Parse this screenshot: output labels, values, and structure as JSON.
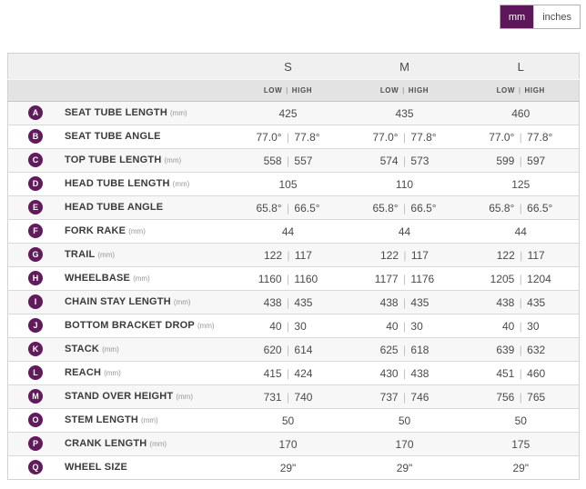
{
  "accent_color": "#5e175a",
  "unit_toggle": {
    "mm_label": "mm",
    "inches_label": "inches",
    "active": "mm"
  },
  "table": {
    "sizes": [
      "S",
      "M",
      "L"
    ],
    "sub_header": "LOW | HIGH",
    "rows": [
      {
        "letter": "A",
        "label": "SEAT TUBE LENGTH",
        "unit": "(mm)",
        "values": [
          "425",
          "435",
          "460"
        ]
      },
      {
        "letter": "B",
        "label": "SEAT TUBE ANGLE",
        "unit": "",
        "values": [
          "77.0° | 77.8°",
          "77.0° | 77.8°",
          "77.0° | 77.8°"
        ]
      },
      {
        "letter": "C",
        "label": "TOP TUBE LENGTH",
        "unit": "(mm)",
        "values": [
          "558 | 557",
          "574 | 573",
          "599 | 597"
        ]
      },
      {
        "letter": "D",
        "label": "HEAD TUBE LENGTH",
        "unit": "(mm)",
        "values": [
          "105",
          "110",
          "125"
        ]
      },
      {
        "letter": "E",
        "label": "HEAD TUBE ANGLE",
        "unit": "",
        "values": [
          "65.8° | 66.5°",
          "65.8° | 66.5°",
          "65.8° | 66.5°"
        ]
      },
      {
        "letter": "F",
        "label": "FORK RAKE",
        "unit": "(mm)",
        "values": [
          "44",
          "44",
          "44"
        ]
      },
      {
        "letter": "G",
        "label": "TRAIL",
        "unit": "(mm)",
        "values": [
          "122 | 117",
          "122 | 117",
          "122 | 117"
        ]
      },
      {
        "letter": "H",
        "label": "WHEELBASE",
        "unit": "(mm)",
        "values": [
          "1160 | 1160",
          "1177 | 1176",
          "1205 | 1204"
        ]
      },
      {
        "letter": "I",
        "label": "CHAIN STAY LENGTH",
        "unit": "(mm)",
        "values": [
          "438 | 435",
          "438 | 435",
          "438 | 435"
        ]
      },
      {
        "letter": "J",
        "label": "BOTTOM BRACKET DROP",
        "unit": "(mm)",
        "values": [
          "40 | 30",
          "40 | 30",
          "40 | 30"
        ]
      },
      {
        "letter": "K",
        "label": "STACK",
        "unit": "(mm)",
        "values": [
          "620 | 614",
          "625 | 618",
          "639 | 632"
        ]
      },
      {
        "letter": "L",
        "label": "REACH",
        "unit": "(mm)",
        "values": [
          "415 | 424",
          "430 | 438",
          "451 | 460"
        ]
      },
      {
        "letter": "M",
        "label": "STAND OVER HEIGHT",
        "unit": "(mm)",
        "values": [
          "731 | 740",
          "737 | 746",
          "756 | 765"
        ]
      },
      {
        "letter": "O",
        "label": "STEM LENGTH",
        "unit": "(mm)",
        "values": [
          "50",
          "50",
          "50"
        ]
      },
      {
        "letter": "P",
        "label": "CRANK LENGTH",
        "unit": "(mm)",
        "values": [
          "170",
          "170",
          "175"
        ]
      },
      {
        "letter": "Q",
        "label": "WHEEL SIZE",
        "unit": "",
        "values": [
          "29\"",
          "29\"",
          "29\""
        ]
      }
    ]
  }
}
